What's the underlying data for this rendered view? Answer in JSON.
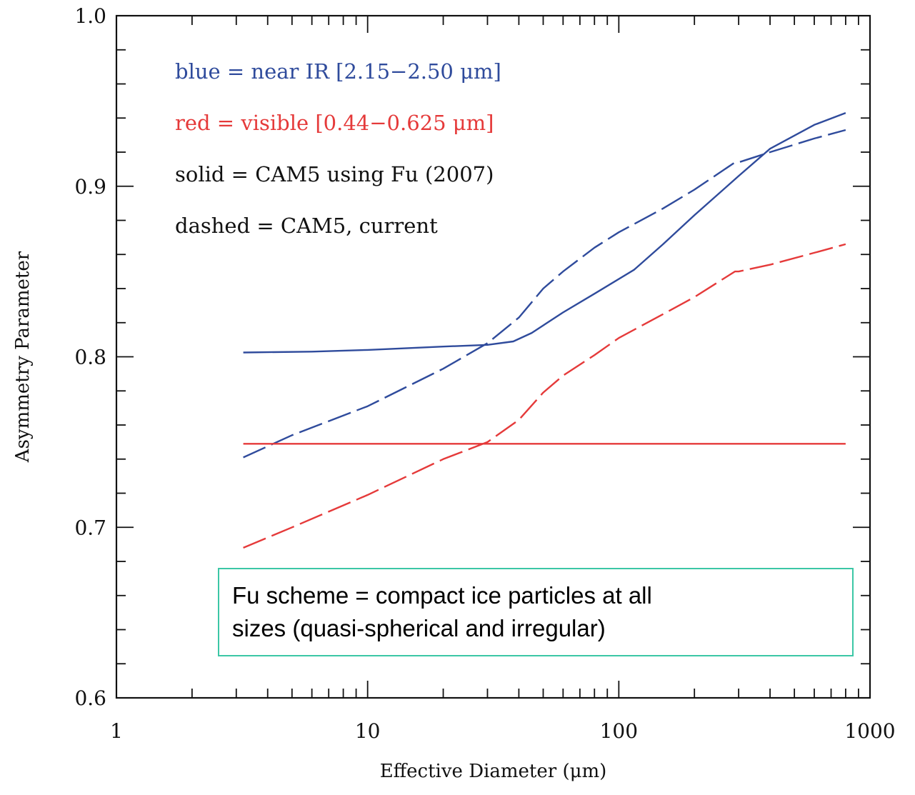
{
  "chart_data": {
    "type": "line",
    "xscale": "log",
    "xlim": [
      1,
      1000
    ],
    "ylim": [
      0.6,
      1.0
    ],
    "xlabel": "Effective Diameter (μm)",
    "ylabel": "Asymmetry Parameter",
    "xticks": [
      {
        "v": 1,
        "label": "1"
      },
      {
        "v": 10,
        "label": "10"
      },
      {
        "v": 100,
        "label": "100"
      },
      {
        "v": 1000,
        "label": "1000"
      }
    ],
    "yticks": [
      {
        "v": 0.6,
        "label": "0.6"
      },
      {
        "v": 0.7,
        "label": "0.7"
      },
      {
        "v": 0.8,
        "label": "0.8"
      },
      {
        "v": 0.9,
        "label": "0.9"
      },
      {
        "v": 1.0,
        "label": "1.0"
      }
    ],
    "legend": [
      {
        "text": "blue  =  near IR [2.15−2.50 μm]",
        "color": "#2f4b9c"
      },
      {
        "text": "red   =  visible [0.44−0.625 μm]",
        "color": "#e53a3a"
      },
      {
        "text": "solid  =  CAM5 using Fu (2007)",
        "color": "#111111"
      },
      {
        "text": "dashed  =  CAM5, current",
        "color": "#111111"
      }
    ],
    "series": [
      {
        "color": "#2f4b9c",
        "dash": false,
        "x": [
          3.2,
          6,
          10,
          20,
          30,
          38,
          45,
          60,
          80,
          115,
          150,
          200,
          300,
          400,
          600,
          800
        ],
        "y": [
          0.8025,
          0.803,
          0.804,
          0.806,
          0.807,
          0.809,
          0.814,
          0.826,
          0.837,
          0.851,
          0.866,
          0.883,
          0.906,
          0.922,
          0.936,
          0.943
        ]
      },
      {
        "color": "#2f4b9c",
        "dash": true,
        "x": [
          3.2,
          5,
          10,
          20,
          30,
          40,
          50,
          60,
          80,
          100,
          150,
          200,
          290,
          300,
          400,
          600,
          800
        ],
        "y": [
          0.741,
          0.754,
          0.771,
          0.793,
          0.808,
          0.823,
          0.84,
          0.85,
          0.864,
          0.873,
          0.887,
          0.898,
          0.914,
          0.914,
          0.92,
          0.928,
          0.933
        ]
      },
      {
        "color": "#e53a3a",
        "dash": false,
        "x": [
          3.2,
          800
        ],
        "y": [
          0.749,
          0.749
        ]
      },
      {
        "color": "#e53a3a",
        "dash": true,
        "x": [
          3.2,
          5,
          10,
          20,
          30,
          40,
          50,
          60,
          80,
          100,
          150,
          200,
          290,
          300,
          400,
          600,
          800
        ],
        "y": [
          0.688,
          0.7,
          0.719,
          0.74,
          0.75,
          0.763,
          0.779,
          0.789,
          0.801,
          0.811,
          0.825,
          0.835,
          0.85,
          0.85,
          0.854,
          0.861,
          0.866
        ]
      }
    ]
  },
  "note": {
    "line1": "Fu scheme = compact ice particles at all",
    "line2": "sizes (quasi-spherical and irregular)"
  }
}
